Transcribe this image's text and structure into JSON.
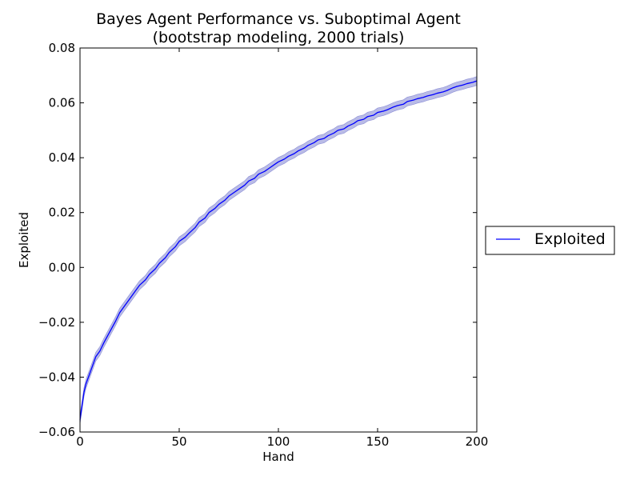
{
  "chart_data": {
    "type": "line",
    "title": "Bayes Agent Performance vs. Suboptimal Agent",
    "subtitle": "(bootstrap modeling, 2000 trials)",
    "xlabel": "Hand",
    "ylabel": "Exploited",
    "xlim": [
      0,
      200
    ],
    "ylim": [
      -0.06,
      0.08
    ],
    "x_ticks": [
      0,
      50,
      100,
      150,
      200
    ],
    "x_tick_labels": [
      "0",
      "50",
      "100",
      "150",
      "200"
    ],
    "y_ticks": [
      -0.06,
      -0.04,
      -0.02,
      0.0,
      0.02,
      0.04,
      0.06,
      0.08
    ],
    "y_tick_labels": [
      "−0.06",
      "−0.04",
      "−0.02",
      "0.00",
      "0.02",
      "0.04",
      "0.06",
      "0.08"
    ],
    "grid": false,
    "legend_position": "outside-right",
    "series": [
      {
        "name": "Exploited",
        "color": "#0000ff",
        "band_color": "#b9bbe6",
        "band_halfwidth": 0.0016,
        "x": [
          0,
          1,
          2,
          3,
          4,
          5,
          6,
          7,
          8,
          10,
          12,
          15,
          18,
          20,
          22,
          25,
          28,
          30,
          33,
          35,
          38,
          40,
          43,
          45,
          48,
          50,
          53,
          55,
          58,
          60,
          63,
          65,
          68,
          70,
          73,
          75,
          78,
          80,
          83,
          85,
          88,
          90,
          93,
          95,
          98,
          100,
          103,
          105,
          108,
          110,
          113,
          115,
          118,
          120,
          123,
          125,
          128,
          130,
          133,
          135,
          138,
          140,
          143,
          145,
          148,
          150,
          153,
          155,
          158,
          160,
          163,
          165,
          168,
          170,
          173,
          175,
          178,
          180,
          183,
          185,
          188,
          190,
          193,
          195,
          198,
          200
        ],
        "values": [
          -0.0555,
          -0.0505,
          -0.0455,
          -0.0425,
          -0.0405,
          -0.0385,
          -0.0365,
          -0.0345,
          -0.0325,
          -0.0305,
          -0.0275,
          -0.0235,
          -0.0195,
          -0.0165,
          -0.0145,
          -0.0115,
          -0.0085,
          -0.0065,
          -0.0045,
          -0.0025,
          -0.0005,
          0.0015,
          0.0035,
          0.0055,
          0.0075,
          0.0095,
          0.011,
          0.0125,
          0.0145,
          0.0165,
          0.018,
          0.02,
          0.0215,
          0.023,
          0.0245,
          0.026,
          0.0275,
          0.0285,
          0.03,
          0.0315,
          0.0325,
          0.034,
          0.035,
          0.036,
          0.0375,
          0.0385,
          0.0395,
          0.0405,
          0.0415,
          0.0425,
          0.0435,
          0.0445,
          0.0455,
          0.0465,
          0.047,
          0.048,
          0.049,
          0.05,
          0.0505,
          0.0515,
          0.0525,
          0.0535,
          0.054,
          0.055,
          0.0555,
          0.0565,
          0.057,
          0.0575,
          0.0585,
          0.059,
          0.0595,
          0.0605,
          0.061,
          0.0615,
          0.062,
          0.0625,
          0.063,
          0.0635,
          0.064,
          0.0645,
          0.0655,
          0.066,
          0.0665,
          0.067,
          0.0675,
          0.068
        ]
      }
    ]
  }
}
